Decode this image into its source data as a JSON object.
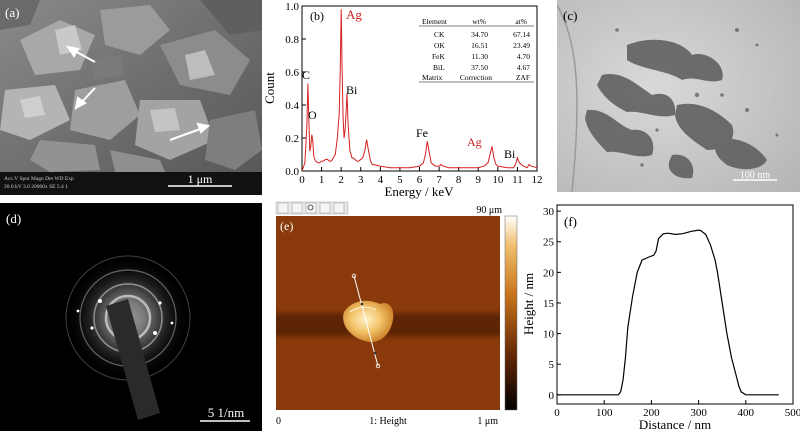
{
  "panels": {
    "a": {
      "label": "(a)",
      "scalebar": "1 μm",
      "info_header": "Acc.V  Spot Magn   Det  WD  Exp",
      "info_values": "20.0 kV 3.0  20000x  SE  5.4   1"
    },
    "b": {
      "label": "(b)",
      "peak_labels": {
        "ag_main": "Ag",
        "c": "C",
        "o": "O",
        "bi_low": "Bi",
        "fe": "Fe",
        "ag_high": "Ag",
        "bi_high": "Bi"
      },
      "table": {
        "headers": [
          "Element",
          "wt%",
          "at%"
        ],
        "rows": [
          [
            "CK",
            "34.70",
            "67.14"
          ],
          [
            "OK",
            "16.51",
            "23.49"
          ],
          [
            "FeK",
            "11.30",
            "4.70"
          ],
          [
            "BiL",
            "37.50",
            "4.67"
          ],
          [
            "Matrix",
            "Correction",
            "ZAF"
          ]
        ]
      }
    },
    "c": {
      "label": "(c)",
      "scalebar": "100 nm"
    },
    "d": {
      "label": "(d)",
      "scalebar": "5 1/nm"
    },
    "e": {
      "label": "(e)",
      "colorbar_max": "90 μm",
      "bottom_left": "0",
      "bottom_center": "1: Height",
      "bottom_right": "1 μm"
    },
    "f": {
      "label": "(f)"
    }
  },
  "colors": {
    "eds_spectrum": "#d42020",
    "highlight_label": "#c81e1e",
    "afm_background": "#8a3a0a"
  },
  "chart_data": [
    {
      "panel": "b",
      "type": "line",
      "title": "",
      "xlabel": "Energy / keV",
      "ylabel": "Count",
      "xlim": [
        0,
        12
      ],
      "ylim": [
        0,
        1.0
      ],
      "xticks": [
        0,
        1,
        2,
        3,
        4,
        5,
        6,
        7,
        8,
        9,
        10,
        11,
        12
      ],
      "yticks": [
        0.0,
        0.2,
        0.4,
        0.6,
        0.8,
        1.0
      ],
      "ytick_labels": [
        "0.0",
        "0.2",
        "0.4",
        "0.6",
        "0.8",
        "1.0"
      ],
      "series": [
        {
          "x": [
            0,
            0.15,
            0.25,
            0.3,
            0.35,
            0.4,
            0.45,
            0.5,
            0.55,
            0.6,
            0.65,
            0.7,
            0.8,
            0.9,
            1.0,
            1.1,
            1.2,
            1.3,
            1.4,
            1.5,
            1.6,
            1.7,
            1.8,
            1.9,
            1.95,
            2.0,
            2.05,
            2.1,
            2.15,
            2.2,
            2.25,
            2.3,
            2.35,
            2.4,
            2.45,
            2.5,
            2.55,
            2.6,
            2.7,
            2.8,
            2.9,
            3.0,
            3.1,
            3.2,
            3.3,
            3.4,
            3.5,
            3.6,
            4.0,
            4.5,
            5.0,
            5.5,
            6.0,
            6.2,
            6.3,
            6.4,
            6.5,
            6.6,
            6.8,
            7.0,
            7.1,
            7.2,
            7.5,
            8.0,
            8.5,
            9.0,
            9.3,
            9.5,
            9.6,
            9.7,
            9.8,
            9.9,
            10.0,
            10.5,
            10.8,
            10.9,
            11.0,
            11.1,
            11.3,
            11.5,
            11.6,
            11.7,
            12.0
          ],
          "y": [
            0.0,
            0.05,
            0.28,
            0.53,
            0.3,
            0.12,
            0.15,
            0.22,
            0.18,
            0.09,
            0.07,
            0.06,
            0.05,
            0.05,
            0.06,
            0.06,
            0.07,
            0.07,
            0.06,
            0.06,
            0.08,
            0.1,
            0.2,
            0.35,
            0.6,
            0.98,
            0.62,
            0.32,
            0.2,
            0.25,
            0.36,
            0.47,
            0.3,
            0.2,
            0.12,
            0.1,
            0.08,
            0.08,
            0.07,
            0.06,
            0.06,
            0.07,
            0.08,
            0.12,
            0.19,
            0.12,
            0.06,
            0.04,
            0.03,
            0.02,
            0.02,
            0.02,
            0.03,
            0.05,
            0.1,
            0.18,
            0.11,
            0.05,
            0.03,
            0.03,
            0.04,
            0.03,
            0.02,
            0.02,
            0.02,
            0.02,
            0.03,
            0.05,
            0.1,
            0.15,
            0.08,
            0.04,
            0.03,
            0.02,
            0.02,
            0.04,
            0.08,
            0.05,
            0.03,
            0.02,
            0.04,
            0.03,
            0.02
          ]
        }
      ]
    },
    {
      "panel": "f",
      "type": "line",
      "title": "",
      "xlabel": "Distance / nm",
      "ylabel": "Height / nm",
      "xlim": [
        0,
        500
      ],
      "ylim": [
        -1.5,
        31
      ],
      "xticks": [
        0,
        100,
        200,
        300,
        400,
        500
      ],
      "yticks": [
        0,
        5,
        10,
        15,
        20,
        25,
        30
      ],
      "series": [
        {
          "x": [
            0,
            100,
            130,
            135,
            140,
            145,
            150,
            160,
            170,
            180,
            195,
            205,
            210,
            215,
            225,
            235,
            250,
            265,
            285,
            300,
            305,
            310,
            315,
            325,
            335,
            340,
            350,
            360,
            370,
            380,
            385,
            390,
            400,
            420,
            470
          ],
          "y": [
            0,
            0,
            0,
            0.5,
            2.5,
            6,
            11,
            16,
            20,
            22,
            22.5,
            22.8,
            23.5,
            25.5,
            26.3,
            26.4,
            26.2,
            26.3,
            26.7,
            26.9,
            26.8,
            26.5,
            26.2,
            24.5,
            22,
            20,
            15,
            10,
            6,
            3,
            1.5,
            0.5,
            0,
            0,
            0
          ]
        }
      ]
    }
  ]
}
